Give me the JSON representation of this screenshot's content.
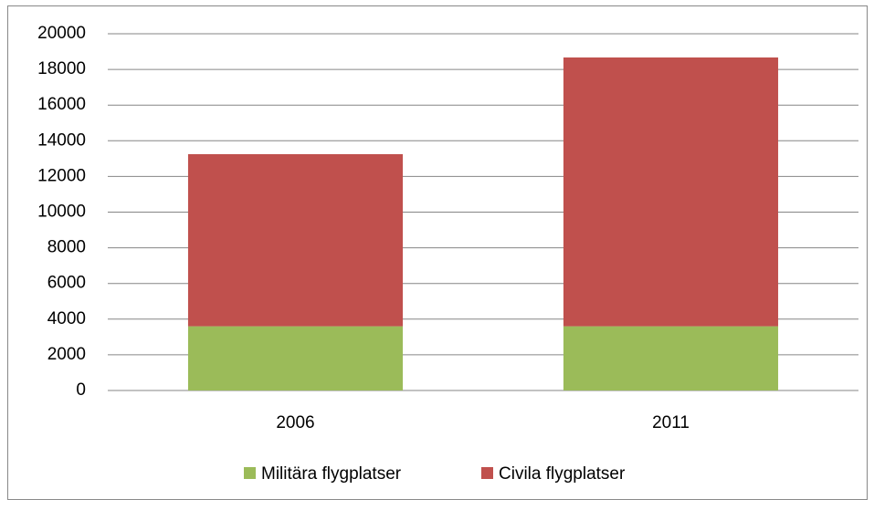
{
  "chart_data": {
    "type": "stacked_bar",
    "categories": [
      "2006",
      "2011"
    ],
    "series": [
      {
        "name": "Militära flygplatser",
        "color": "#9bbb59",
        "values": [
          3600,
          3600
        ]
      },
      {
        "name": "Civila flygplatser",
        "color": "#c0504d",
        "values": [
          9650,
          15070
        ]
      }
    ],
    "ylim": [
      0,
      20000
    ],
    "yticks": [
      0,
      2000,
      4000,
      6000,
      8000,
      10000,
      12000,
      14000,
      16000,
      18000,
      20000
    ],
    "grid": true,
    "legend": "bottom"
  }
}
